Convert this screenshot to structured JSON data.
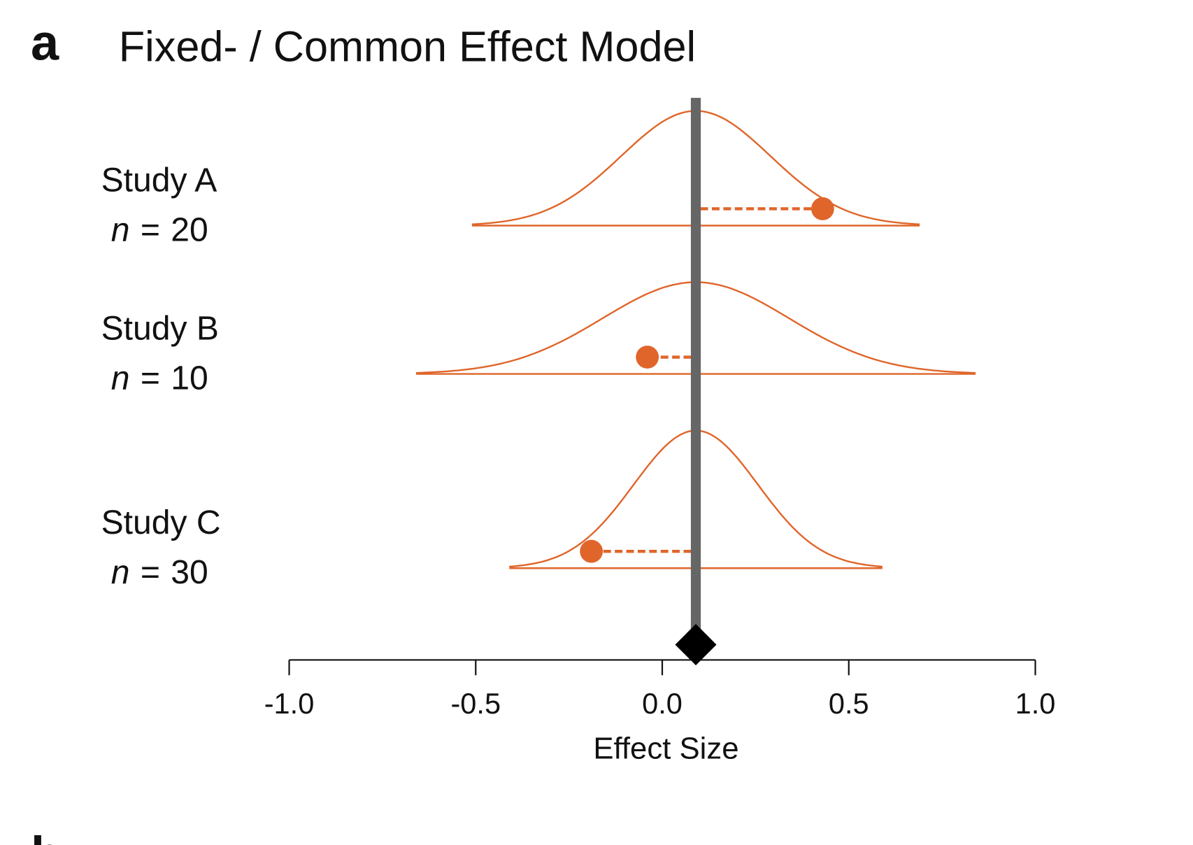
{
  "chart_data": {
    "type": "forest-density",
    "panel_label": "a",
    "title": "Fixed- / Common Effect Model",
    "next_panel_label": "b",
    "xlabel": "Effect Size",
    "xlim": [
      -1.0,
      1.0
    ],
    "xticks": [
      {
        "value": -1.0,
        "label": "-1.0"
      },
      {
        "value": -0.5,
        "label": "-0.5"
      },
      {
        "value": 0.0,
        "label": "0.0"
      },
      {
        "value": 0.5,
        "label": "0.5"
      },
      {
        "value": 1.0,
        "label": "1.0"
      }
    ],
    "pooled_estimate": 0.09,
    "pooled_color": "#666666",
    "color": "#e0652a",
    "n_symbol": "n",
    "equals": "=",
    "studies": [
      {
        "name": "Study A",
        "n": 20,
        "estimate": 0.43,
        "sd": 0.2
      },
      {
        "name": "Study B",
        "n": 10,
        "estimate": -0.04,
        "sd": 0.25
      },
      {
        "name": "Study C",
        "n": 30,
        "estimate": -0.19,
        "sd": 0.1667
      }
    ]
  }
}
